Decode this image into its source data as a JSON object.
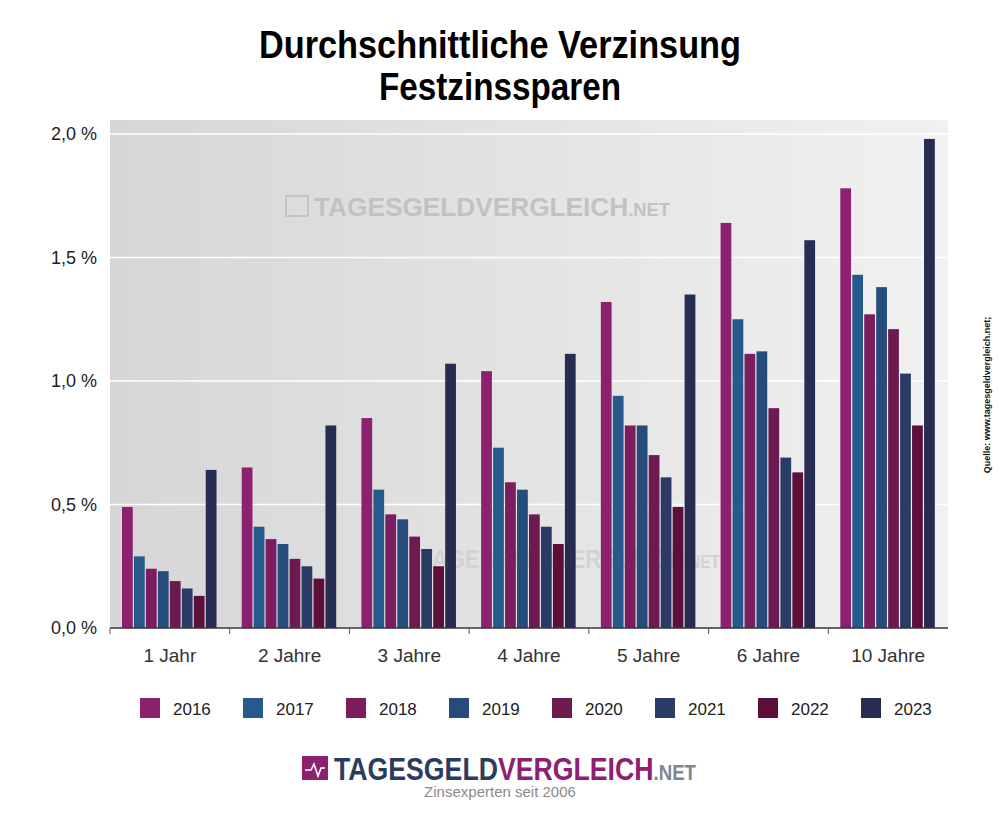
{
  "chart_data": {
    "type": "bar",
    "title": "Durchschnittliche Verzinsung",
    "subtitle": "Festzinssparen",
    "categories": [
      "1 Jahr",
      "2 Jahre",
      "3 Jahre",
      "4 Jahre",
      "5 Jahre",
      "6 Jahre",
      "10 Jahre"
    ],
    "series": [
      {
        "name": "2016",
        "color": "#8c2170",
        "values": [
          0.49,
          0.65,
          0.85,
          1.04,
          1.32,
          1.64,
          1.78
        ]
      },
      {
        "name": "2017",
        "color": "#265a8c",
        "values": [
          0.29,
          0.41,
          0.56,
          0.73,
          0.94,
          1.25,
          1.43
        ]
      },
      {
        "name": "2018",
        "color": "#7c1d5f",
        "values": [
          0.24,
          0.36,
          0.46,
          0.59,
          0.82,
          1.11,
          1.27
        ]
      },
      {
        "name": "2019",
        "color": "#254c7a",
        "values": [
          0.23,
          0.34,
          0.44,
          0.56,
          0.82,
          1.12,
          1.38
        ]
      },
      {
        "name": "2020",
        "color": "#6d1a50",
        "values": [
          0.19,
          0.28,
          0.37,
          0.46,
          0.7,
          0.89,
          1.21
        ]
      },
      {
        "name": "2021",
        "color": "#2a3c66",
        "values": [
          0.16,
          0.25,
          0.32,
          0.41,
          0.61,
          0.69,
          1.03
        ]
      },
      {
        "name": "2022",
        "color": "#5c0f3a",
        "values": [
          0.13,
          0.2,
          0.25,
          0.34,
          0.49,
          0.63,
          0.82
        ]
      },
      {
        "name": "2023",
        "color": "#272c52",
        "values": [
          0.64,
          0.82,
          1.07,
          1.11,
          1.35,
          1.57,
          1.98
        ]
      }
    ],
    "ylim": [
      0,
      2
    ],
    "yticks": [
      {
        "value": 0,
        "label": "0,0 %"
      },
      {
        "value": 0.5,
        "label": "0,5 %"
      },
      {
        "value": 1,
        "label": "1,0 %"
      },
      {
        "value": 1.5,
        "label": "1,5 %"
      },
      {
        "value": 2,
        "label": "2,0 %"
      }
    ],
    "grid": true,
    "legend": "bottom",
    "source": "Quelle: www.tagesgeldvergleich.net;",
    "watermark": [
      "TAGESGELD",
      "VERGLEICH",
      ".NET"
    ],
    "logo": [
      "TAGESGELD",
      "VERGLEICH",
      ".NET"
    ],
    "tagline": "Zinsexperten seit 2006"
  }
}
